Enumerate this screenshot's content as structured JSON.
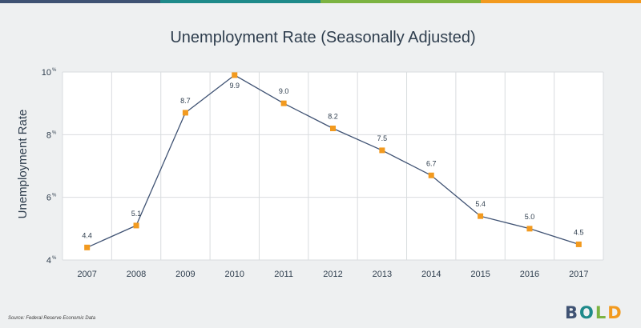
{
  "colors": {
    "background": "#eef0f1",
    "plot_background": "#ffffff",
    "line": "#3f5273",
    "marker": "#f29a1f",
    "text": "#2f3e4e",
    "grid": "#d9dcdf",
    "top_bar": [
      "#3f5273",
      "#1e8a8a",
      "#7cb342",
      "#f29a1f"
    ]
  },
  "chart_data": {
    "type": "line",
    "title": "Unemployment Rate (Seasonally Adjusted)",
    "xlabel": "",
    "ylabel": "Unemployment Rate",
    "categories": [
      "2007",
      "2008",
      "2009",
      "2010",
      "2011",
      "2012",
      "2013",
      "2014",
      "2015",
      "2016",
      "2017"
    ],
    "series": [
      {
        "values": [
          4.4,
          5.1,
          8.7,
          9.9,
          9.0,
          8.2,
          7.5,
          6.7,
          5.4,
          5.0,
          4.5
        ]
      }
    ],
    "data_labels": [
      "4.4",
      "5.1",
      "8.7",
      "9.9",
      "9.0",
      "8.2",
      "7.5",
      "6.7",
      "5.4",
      "5.0",
      "4.5"
    ],
    "y_ticks": [
      {
        "value": 10,
        "label": "10",
        "unit": "%"
      },
      {
        "value": 8,
        "label": "8",
        "unit": "%"
      },
      {
        "value": 6,
        "label": "6",
        "unit": "%"
      },
      {
        "value": 4,
        "label": "4",
        "unit": "%"
      }
    ],
    "ylim": [
      4,
      10
    ],
    "grid": true,
    "legend": "none"
  },
  "source": "Source: Federal Reserve Economic Data",
  "logo": {
    "letters": [
      {
        "char": "B",
        "color": "#3f5273"
      },
      {
        "char": "O",
        "color": "#1e8a8a"
      },
      {
        "char": "L",
        "color": "#7cb342"
      },
      {
        "char": "D",
        "color": "#f29a1f"
      }
    ]
  }
}
